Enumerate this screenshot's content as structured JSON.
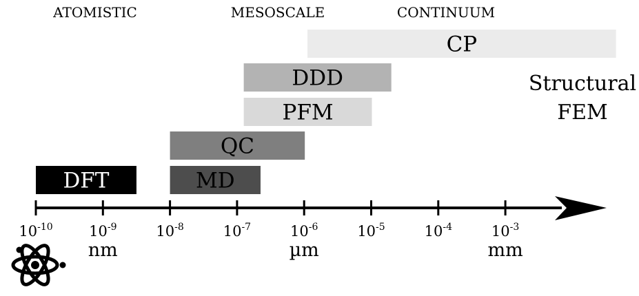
{
  "regimes": [
    {
      "label": "ATOMISTIC"
    },
    {
      "label": "MESOSCALE"
    },
    {
      "label": "CONTINUUM"
    }
  ],
  "methods": [
    {
      "label": "DFT",
      "from_exp": -10,
      "to_exp": -8.5,
      "fill": "#000000",
      "text_color": "#ffffff"
    },
    {
      "label": "MD",
      "from_exp": -8,
      "to_exp": -6.65,
      "fill": "#4d4d4d",
      "text_color": "#000000"
    },
    {
      "label": "QC",
      "from_exp": -8,
      "to_exp": -5.99,
      "fill": "#7f7f7f",
      "text_color": "#000000"
    },
    {
      "label": "PFM",
      "from_exp": -6.9,
      "to_exp": -4.99,
      "fill": "#d9d9d9",
      "text_color": "#000000"
    },
    {
      "label": "DDD",
      "from_exp": -6.9,
      "to_exp": -4.7,
      "fill": "#b3b3b3",
      "text_color": "#000000"
    },
    {
      "label": "CP",
      "from_exp": -5.95,
      "to_exp": -1.35,
      "fill": "#ebebeb",
      "text_color": "#000000"
    }
  ],
  "structural": {
    "line1": "Structural",
    "line2": "FEM"
  },
  "axis": {
    "ticks": [
      {
        "exp": -10,
        "base": "10",
        "power": "-10"
      },
      {
        "exp": -9,
        "base": "10",
        "power": "-9"
      },
      {
        "exp": -8,
        "base": "10",
        "power": "-8"
      },
      {
        "exp": -7,
        "base": "10",
        "power": "-7"
      },
      {
        "exp": -6,
        "base": "10",
        "power": "-6"
      },
      {
        "exp": -5,
        "base": "10",
        "power": "-5"
      },
      {
        "exp": -4,
        "base": "10",
        "power": "-4"
      },
      {
        "exp": -3,
        "base": "10",
        "power": "-3"
      }
    ],
    "units": [
      {
        "exp": -9,
        "label": "nm"
      },
      {
        "exp": -6,
        "label": "µm"
      },
      {
        "exp": -3,
        "label": "mm"
      }
    ]
  },
  "icons": {
    "atom": "atom-icon"
  }
}
